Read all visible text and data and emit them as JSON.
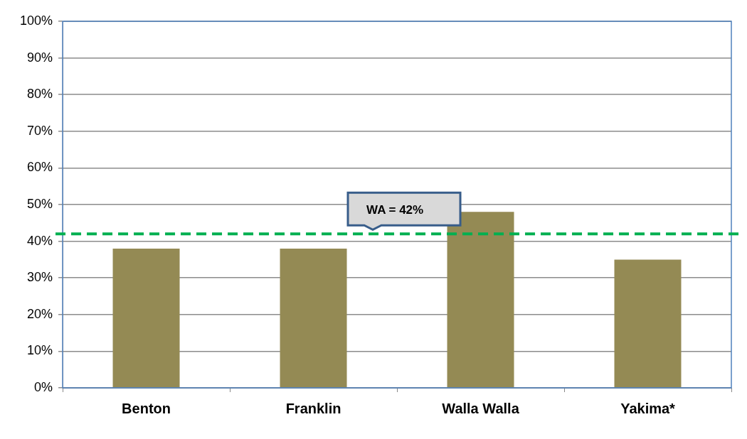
{
  "chart_data": {
    "type": "bar",
    "categories": [
      "Benton",
      "Franklin",
      "Walla Walla",
      "Yakima*"
    ],
    "values": [
      38,
      38,
      48,
      35
    ],
    "color": "#948a54",
    "ylim": [
      0,
      100
    ],
    "yticks": [
      {
        "value": 0,
        "label": "0%"
      },
      {
        "value": 10,
        "label": "10%"
      },
      {
        "value": 20,
        "label": "20%"
      },
      {
        "value": 30,
        "label": "30%"
      },
      {
        "value": 40,
        "label": "40%"
      },
      {
        "value": 50,
        "label": "50%"
      },
      {
        "value": 60,
        "label": "60%"
      },
      {
        "value": 70,
        "label": "70%"
      },
      {
        "value": 80,
        "label": "80%"
      },
      {
        "value": 90,
        "label": "90%"
      },
      {
        "value": 100,
        "label": "100%"
      }
    ],
    "grid": "y",
    "ref_lines": [
      {
        "axis": "y",
        "value": 42,
        "label": "WA = 42%",
        "color": "#00b050",
        "line_style": "dashed"
      }
    ]
  }
}
